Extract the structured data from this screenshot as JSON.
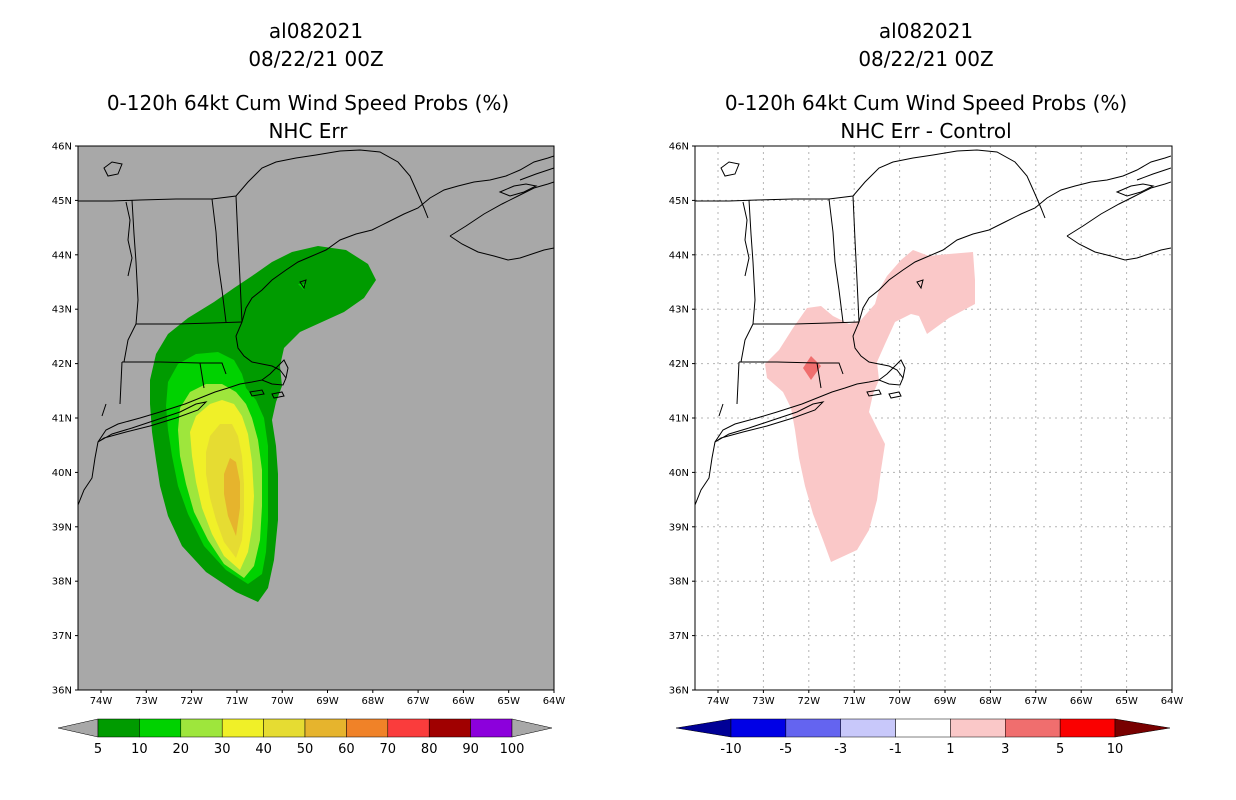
{
  "left_panel": {
    "storm_id": "al082021",
    "datetime": "08/22/21 00Z",
    "title": "0-120h 64kt Cum Wind Speed Probs (%)",
    "subtitle": "NHC Err",
    "background": "#a8a8a8",
    "lat_labels": [
      "46N",
      "45N",
      "44N",
      "43N",
      "42N",
      "41N",
      "40N",
      "39N",
      "38N",
      "37N",
      "36N"
    ],
    "lon_labels": [
      "74W",
      "73W",
      "72W",
      "71W",
      "70W",
      "69W",
      "68W",
      "67W",
      "66W",
      "65W",
      "64W"
    ],
    "colorbar": {
      "labels": [
        "5",
        "10",
        "20",
        "30",
        "40",
        "50",
        "60",
        "70",
        "80",
        "90",
        "100"
      ],
      "colors": [
        "#009b00",
        "#00d200",
        "#9ee63c",
        "#f0f028",
        "#e6dc32",
        "#e6b42d",
        "#f08228",
        "#fa3c3c",
        "#a00000",
        "#8c00dc"
      ],
      "under_color": "#a8a8a8",
      "over_color": "#a8a8a8"
    }
  },
  "right_panel": {
    "storm_id": "al082021",
    "datetime": "08/22/21 00Z",
    "title": "0-120h 64kt Cum Wind Speed Probs (%)",
    "subtitle": "NHC Err - Control",
    "background": "#ffffff",
    "lat_labels": [
      "46N",
      "45N",
      "44N",
      "43N",
      "42N",
      "41N",
      "40N",
      "39N",
      "38N",
      "37N",
      "36N"
    ],
    "lon_labels": [
      "74W",
      "73W",
      "72W",
      "71W",
      "70W",
      "69W",
      "68W",
      "67W",
      "66W",
      "65W",
      "64W"
    ],
    "colorbar": {
      "labels": [
        "-10",
        "-5",
        "-3",
        "-1",
        "1",
        "3",
        "5",
        "10"
      ],
      "colors": [
        "#0000e6",
        "#6464f0",
        "#c8c8fa",
        "#ffffff",
        "#fac8c8",
        "#f06e6e",
        "#fa0000"
      ],
      "under_color": "#000096",
      "over_color": "#780000"
    }
  }
}
